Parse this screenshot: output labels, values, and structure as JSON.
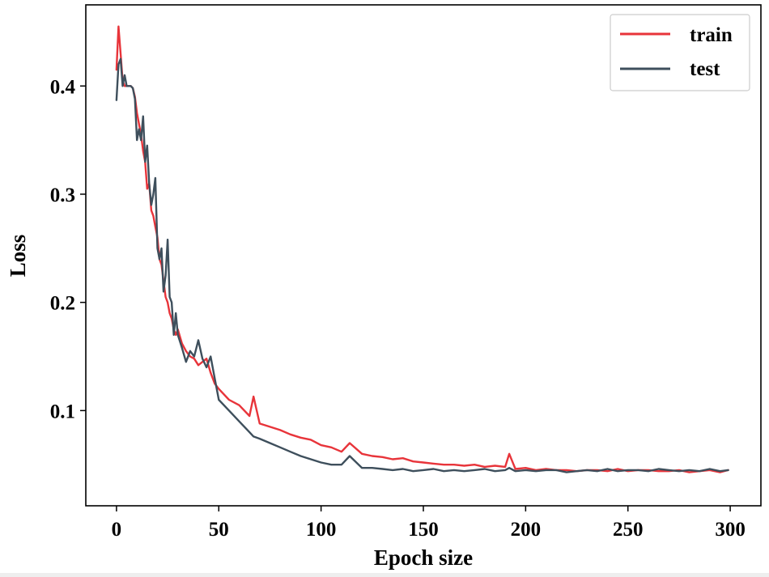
{
  "chart_data": {
    "type": "line",
    "title": "",
    "xlabel": "Epoch size",
    "ylabel": "Loss",
    "xlim": [
      -15,
      315
    ],
    "ylim": [
      0.012,
      0.475
    ],
    "xticks": [
      0,
      50,
      100,
      150,
      200,
      250,
      300
    ],
    "xtick_labels": [
      "0",
      "50",
      "100",
      "150",
      "200",
      "250",
      "300"
    ],
    "yticks": [
      0.1,
      0.2,
      0.3,
      0.4
    ],
    "ytick_labels": [
      "0.1",
      "0.2",
      "0.3",
      "0.4"
    ],
    "grid": false,
    "legend_position": "top-right",
    "x": [
      0,
      1,
      2,
      3,
      4,
      5,
      6,
      7,
      8,
      9,
      10,
      11,
      12,
      13,
      14,
      15,
      16,
      17,
      18,
      19,
      20,
      21,
      22,
      23,
      24,
      25,
      26,
      27,
      28,
      29,
      30,
      32,
      34,
      36,
      38,
      40,
      42,
      44,
      46,
      48,
      50,
      55,
      60,
      65,
      67,
      70,
      75,
      80,
      85,
      90,
      95,
      100,
      105,
      110,
      114,
      120,
      125,
      130,
      135,
      140,
      145,
      150,
      155,
      160,
      165,
      170,
      175,
      180,
      185,
      190,
      192,
      195,
      200,
      205,
      210,
      215,
      220,
      225,
      230,
      235,
      240,
      245,
      250,
      255,
      260,
      265,
      270,
      275,
      280,
      285,
      290,
      295,
      299
    ],
    "series": [
      {
        "name": "train",
        "color": "#e8343a",
        "values": [
          0.415,
          0.455,
          0.43,
          0.405,
          0.4,
          0.4,
          0.4,
          0.4,
          0.398,
          0.39,
          0.375,
          0.365,
          0.355,
          0.34,
          0.33,
          0.305,
          0.31,
          0.285,
          0.28,
          0.27,
          0.26,
          0.24,
          0.235,
          0.22,
          0.205,
          0.2,
          0.19,
          0.185,
          0.175,
          0.17,
          0.175,
          0.162,
          0.155,
          0.15,
          0.148,
          0.142,
          0.145,
          0.148,
          0.135,
          0.125,
          0.12,
          0.11,
          0.105,
          0.095,
          0.113,
          0.088,
          0.085,
          0.082,
          0.078,
          0.075,
          0.073,
          0.068,
          0.066,
          0.062,
          0.07,
          0.06,
          0.058,
          0.057,
          0.055,
          0.056,
          0.053,
          0.052,
          0.051,
          0.05,
          0.05,
          0.049,
          0.05,
          0.048,
          0.049,
          0.048,
          0.06,
          0.046,
          0.047,
          0.045,
          0.046,
          0.045,
          0.045,
          0.044,
          0.045,
          0.045,
          0.044,
          0.046,
          0.044,
          0.045,
          0.045,
          0.044,
          0.044,
          0.045,
          0.043,
          0.044,
          0.045,
          0.043,
          0.045
        ]
      },
      {
        "name": "test",
        "color": "#3e4f5c",
        "values": [
          0.387,
          0.42,
          0.425,
          0.4,
          0.41,
          0.4,
          0.4,
          0.4,
          0.398,
          0.388,
          0.35,
          0.36,
          0.35,
          0.372,
          0.33,
          0.345,
          0.31,
          0.29,
          0.3,
          0.315,
          0.25,
          0.24,
          0.25,
          0.21,
          0.225,
          0.258,
          0.205,
          0.2,
          0.17,
          0.19,
          0.17,
          0.158,
          0.145,
          0.155,
          0.15,
          0.165,
          0.148,
          0.14,
          0.15,
          0.13,
          0.11,
          0.1,
          0.09,
          0.08,
          0.076,
          0.074,
          0.07,
          0.066,
          0.062,
          0.058,
          0.055,
          0.052,
          0.05,
          0.05,
          0.058,
          0.047,
          0.047,
          0.046,
          0.045,
          0.046,
          0.044,
          0.045,
          0.046,
          0.044,
          0.045,
          0.044,
          0.045,
          0.046,
          0.044,
          0.045,
          0.047,
          0.044,
          0.045,
          0.044,
          0.045,
          0.045,
          0.043,
          0.044,
          0.045,
          0.044,
          0.046,
          0.044,
          0.045,
          0.045,
          0.044,
          0.046,
          0.045,
          0.044,
          0.045,
          0.044,
          0.046,
          0.044,
          0.045
        ]
      }
    ]
  }
}
